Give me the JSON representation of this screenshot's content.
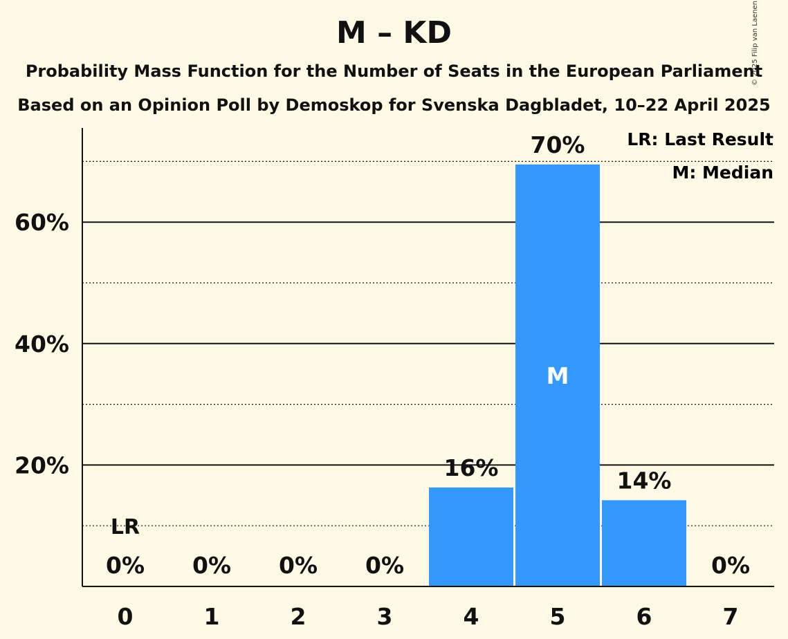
{
  "header": {
    "title": "M – KD",
    "subtitle1": "Probability Mass Function for the Number of Seats in the European Parliament",
    "subtitle2": "Based on an Opinion Poll by Demoskop for Svenska Dagbladet, 10–22 April 2025",
    "copyright": "© 2025 Filip van Laenen"
  },
  "legend": {
    "last_result": "LR: Last Result",
    "median": "M: Median"
  },
  "colors": {
    "bar": "#3399ff",
    "background": "#fff9e5",
    "text": "#111111"
  },
  "chart_data": {
    "type": "bar",
    "categories": [
      "0",
      "1",
      "2",
      "3",
      "4",
      "5",
      "6",
      "7"
    ],
    "values": [
      0,
      0,
      0,
      0,
      16.3,
      69.5,
      14.2,
      0
    ],
    "value_labels": [
      "0%",
      "0%",
      "0%",
      "0%",
      "16%",
      "70%",
      "14%",
      "0%"
    ],
    "y_ticks": [
      20,
      40,
      60
    ],
    "y_tick_labels": [
      "20%",
      "40%",
      "60%"
    ],
    "minor_gridlines": [
      10,
      30,
      50,
      70
    ],
    "ylim": [
      0,
      76
    ],
    "last_result_index": 0,
    "last_result_label": "LR",
    "median_index": 5,
    "median_label": "M"
  }
}
